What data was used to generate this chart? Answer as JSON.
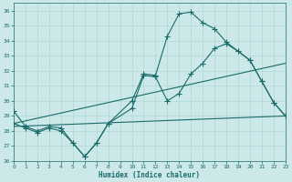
{
  "xlabel": "Humidex (Indice chaleur)",
  "bg_color": "#cce8e8",
  "line_color": "#1a6b6b",
  "grid_color": "#a8d4d4",
  "xlim": [
    0,
    23
  ],
  "ylim": [
    26,
    36.5
  ],
  "yticks": [
    26,
    27,
    28,
    29,
    30,
    31,
    32,
    33,
    34,
    35,
    36
  ],
  "xticks": [
    0,
    1,
    2,
    3,
    4,
    5,
    6,
    7,
    8,
    9,
    10,
    11,
    12,
    13,
    14,
    15,
    16,
    17,
    18,
    19,
    20,
    21,
    22,
    23
  ],
  "curve1_x": [
    0,
    1,
    2,
    3,
    4,
    5,
    6,
    7,
    8,
    10,
    11,
    12,
    13,
    14,
    15,
    16,
    17,
    18,
    19,
    20,
    21,
    22,
    23
  ],
  "curve1_y": [
    29.3,
    28.3,
    28.0,
    28.3,
    28.2,
    27.2,
    26.3,
    27.2,
    28.5,
    30.0,
    31.8,
    31.7,
    34.3,
    35.8,
    35.9,
    35.2,
    34.8,
    33.9,
    33.3,
    32.7,
    31.3,
    29.9,
    29.0
  ],
  "curve2_x": [
    0,
    1,
    2,
    3,
    4,
    5,
    6,
    7,
    8,
    10,
    11,
    12,
    13,
    14,
    15,
    16,
    17,
    18,
    19,
    20,
    21,
    22,
    23
  ],
  "curve2_y": [
    28.5,
    28.2,
    27.9,
    28.2,
    28.0,
    27.2,
    26.3,
    27.2,
    28.5,
    29.5,
    31.7,
    31.6,
    30.0,
    30.5,
    31.8,
    32.5,
    33.5,
    33.8,
    33.3,
    32.7,
    31.3,
    29.9,
    29.0
  ],
  "trend1_x": [
    0,
    23
  ],
  "trend1_y": [
    28.5,
    32.5
  ],
  "trend2_x": [
    0,
    23
  ],
  "trend2_y": [
    28.3,
    29.0
  ],
  "marker_style": "+",
  "marker_size": 4,
  "linewidth": 0.8,
  "tick_fontsize": 4.5,
  "xlabel_fontsize": 5.5
}
